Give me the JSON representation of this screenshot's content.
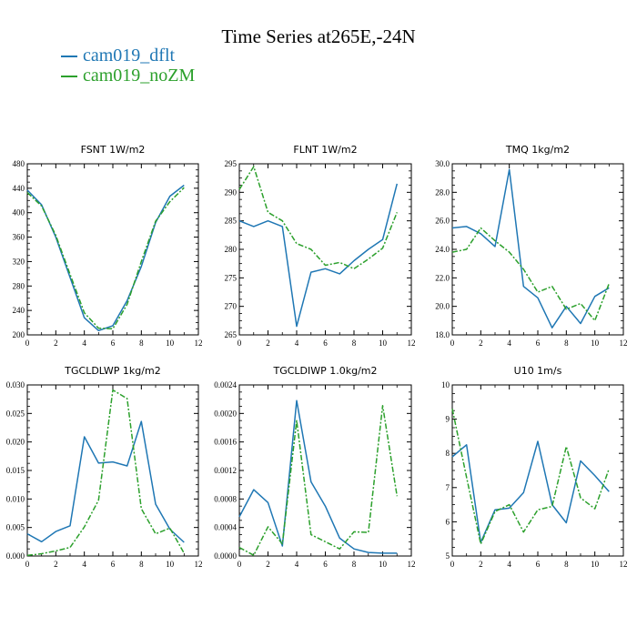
{
  "title": "Time Series at265E,-24N",
  "colors": {
    "dflt": "#1f77b4",
    "noZM": "#2ca02c"
  },
  "legend": [
    {
      "label": "cam019_dflt",
      "color": "#1f77b4"
    },
    {
      "label": "cam019_noZM",
      "color": "#2ca02c"
    }
  ],
  "chart_data": [
    {
      "type": "line",
      "title": "FSNT   1W/m2",
      "x": [
        0,
        1,
        2,
        3,
        4,
        5,
        6,
        7,
        8,
        9,
        10,
        11
      ],
      "xlim": [
        0,
        12
      ],
      "xticks": [
        0,
        2,
        4,
        6,
        8,
        10,
        12
      ],
      "xtick_labels": [
        "0",
        "2",
        "4",
        "6",
        "8",
        "10",
        "12"
      ],
      "ylim": [
        200,
        480
      ],
      "yticks": [
        200,
        240,
        280,
        320,
        360,
        400,
        440,
        480
      ],
      "ytick_labels": [
        "200",
        "240",
        "280",
        "320",
        "360",
        "400",
        "440",
        "480"
      ],
      "series": [
        {
          "name": "cam019_dflt",
          "values": [
            437,
            413,
            360,
            294,
            228,
            207,
            215,
            256,
            312,
            384,
            427,
            445
          ]
        },
        {
          "name": "cam019_noZM",
          "values": [
            433,
            411,
            363,
            299,
            236,
            211,
            210,
            250,
            320,
            386,
            418,
            441
          ]
        }
      ]
    },
    {
      "type": "line",
      "title": "FLNT   1W/m2",
      "x": [
        0,
        1,
        2,
        3,
        4,
        5,
        6,
        7,
        8,
        9,
        10,
        11
      ],
      "xlim": [
        0,
        12
      ],
      "xticks": [
        0,
        2,
        4,
        6,
        8,
        10,
        12
      ],
      "xtick_labels": [
        "0",
        "2",
        "4",
        "6",
        "8",
        "10",
        "12"
      ],
      "ylim": [
        265,
        295
      ],
      "yticks": [
        265,
        270,
        275,
        280,
        285,
        290,
        295
      ],
      "ytick_labels": [
        "265",
        "270",
        "275",
        "280",
        "285",
        "290",
        "295"
      ],
      "series": [
        {
          "name": "cam019_dflt",
          "values": [
            285,
            284,
            285,
            284,
            266.5,
            276,
            276.6,
            275.7,
            278,
            280,
            281.7,
            291.5
          ]
        },
        {
          "name": "cam019_noZM",
          "values": [
            290.5,
            294.5,
            286.5,
            285,
            281,
            280,
            277.2,
            277.7,
            276.6,
            278.3,
            280.2,
            286.5
          ]
        }
      ]
    },
    {
      "type": "line",
      "title": "TMQ   1kg/m2",
      "x": [
        0,
        1,
        2,
        3,
        4,
        5,
        6,
        7,
        8,
        9,
        10,
        11
      ],
      "xlim": [
        0,
        12
      ],
      "xticks": [
        0,
        2,
        4,
        6,
        8,
        10,
        12
      ],
      "xtick_labels": [
        "0",
        "2",
        "4",
        "6",
        "8",
        "10",
        "12"
      ],
      "ylim": [
        18.0,
        30.0
      ],
      "yticks": [
        18,
        20,
        22,
        24,
        26,
        28,
        30
      ],
      "ytick_labels": [
        "18.0",
        "20.0",
        "22.0",
        "24.0",
        "26.0",
        "28.0",
        "30.0"
      ],
      "series": [
        {
          "name": "cam019_dflt",
          "values": [
            25.5,
            25.6,
            25.1,
            24.2,
            29.6,
            21.4,
            20.6,
            18.5,
            20.0,
            18.8,
            20.7,
            21.3
          ]
        },
        {
          "name": "cam019_noZM",
          "values": [
            23.8,
            24.0,
            25.5,
            24.6,
            23.8,
            22.6,
            21.0,
            21.4,
            19.8,
            20.2,
            19.0,
            21.6
          ]
        }
      ]
    },
    {
      "type": "line",
      "title": "TGCLDLWP   1kg/m2",
      "x": [
        0,
        1,
        2,
        3,
        4,
        5,
        6,
        7,
        8,
        9,
        10,
        11
      ],
      "xlim": [
        0,
        12
      ],
      "xticks": [
        0,
        2,
        4,
        6,
        8,
        10,
        12
      ],
      "xtick_labels": [
        "0",
        "2",
        "4",
        "6",
        "8",
        "10",
        "12"
      ],
      "ylim": [
        0,
        0.03
      ],
      "yticks": [
        0,
        0.005,
        0.01,
        0.015,
        0.02,
        0.025,
        0.03
      ],
      "ytick_labels": [
        "0.000",
        "0.005",
        "0.010",
        "0.015",
        "0.020",
        "0.025",
        "0.030"
      ],
      "series": [
        {
          "name": "cam019_dflt",
          "values": [
            0.0039,
            0.0025,
            0.0043,
            0.0053,
            0.0209,
            0.0163,
            0.0165,
            0.0158,
            0.0236,
            0.0091,
            0.0047,
            0.0024
          ]
        },
        {
          "name": "cam019_noZM",
          "values": [
            0.0001,
            0.0004,
            0.0009,
            0.0015,
            0.0051,
            0.0098,
            0.0291,
            0.0276,
            0.0083,
            0.0039,
            0.0049,
            0.0005
          ]
        }
      ]
    },
    {
      "type": "line",
      "title": "TGCLDIWP   1.0kg/m2",
      "x": [
        0,
        1,
        2,
        3,
        4,
        5,
        6,
        7,
        8,
        9,
        10,
        11
      ],
      "xlim": [
        0,
        12
      ],
      "xticks": [
        0,
        2,
        4,
        6,
        8,
        10,
        12
      ],
      "xtick_labels": [
        "0",
        "2",
        "4",
        "6",
        "8",
        "10",
        "12"
      ],
      "ylim": [
        0,
        0.0024
      ],
      "yticks": [
        0,
        0.0004,
        0.0008,
        0.0012,
        0.0016,
        0.002,
        0.0024
      ],
      "ytick_labels": [
        "0.0000",
        "0.0004",
        "0.0008",
        "0.0012",
        "0.0016",
        "0.0020",
        "0.0024"
      ],
      "series": [
        {
          "name": "cam019_dflt",
          "values": [
            0.00055,
            0.00093,
            0.00075,
            0.00014,
            0.00218,
            0.00104,
            0.0007,
            0.00025,
            0.0001,
            5e-05,
            4e-05,
            4e-05
          ]
        },
        {
          "name": "cam019_noZM",
          "values": [
            0.00012,
            1e-05,
            0.00041,
            0.00017,
            0.0019,
            0.0003,
            0.0002,
            0.0001,
            0.00034,
            0.00033,
            0.00211,
            0.00084
          ]
        }
      ]
    },
    {
      "type": "line",
      "title": "U10   1m/s",
      "x": [
        0,
        1,
        2,
        3,
        4,
        5,
        6,
        7,
        8,
        9,
        10,
        11
      ],
      "xlim": [
        0,
        12
      ],
      "xticks": [
        0,
        2,
        4,
        6,
        8,
        10,
        12
      ],
      "xtick_labels": [
        "0",
        "2",
        "4",
        "6",
        "8",
        "10",
        "12"
      ],
      "ylim": [
        5,
        10
      ],
      "yticks": [
        5,
        6,
        7,
        8,
        9,
        10
      ],
      "ytick_labels": [
        "5",
        "6",
        "7",
        "8",
        "9",
        "10"
      ],
      "series": [
        {
          "name": "cam019_dflt",
          "values": [
            7.9,
            8.25,
            5.4,
            6.35,
            6.4,
            6.85,
            8.35,
            6.5,
            5.97,
            7.78,
            7.35,
            6.88
          ]
        },
        {
          "name": "cam019_noZM",
          "values": [
            9.3,
            7.3,
            5.35,
            6.3,
            6.5,
            5.7,
            6.35,
            6.45,
            8.2,
            6.7,
            6.38,
            7.55
          ]
        }
      ]
    }
  ]
}
